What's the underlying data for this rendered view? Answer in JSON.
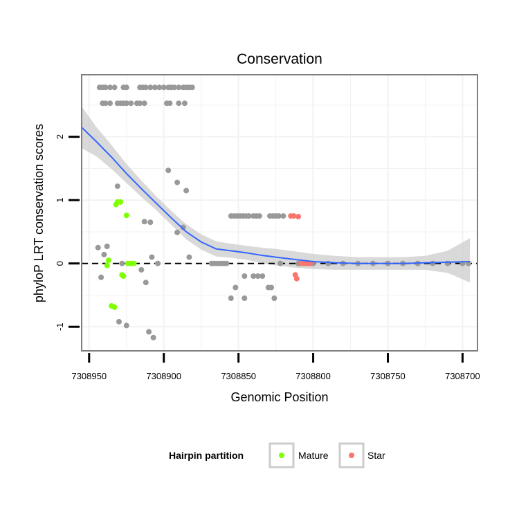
{
  "chart_data": {
    "type": "scatter",
    "title": "Conservation",
    "xlabel": "Genomic Position",
    "ylabel": "phyloP LRT conservation scores",
    "x_reversed": true,
    "xlim": [
      7308955,
      7308690
    ],
    "ylim": [
      -1.38,
      2.98
    ],
    "x_ticks": [
      7308950,
      7308900,
      7308850,
      7308800,
      7308750,
      7308700
    ],
    "x_tick_labels": [
      "7308950",
      "7308900",
      "7308850",
      "7308800",
      "7308750",
      "7308700"
    ],
    "y_ticks": [
      -1,
      0,
      1,
      2
    ],
    "y_tick_labels": [
      "-1",
      "0",
      "1",
      "2"
    ],
    "reference_line_y": 0,
    "legend": {
      "title": "Hairpin partition",
      "position": "bottom",
      "entries": [
        {
          "label": "Mature",
          "color": "#7FFF00"
        },
        {
          "label": "Star",
          "color": "#F8766D"
        }
      ]
    },
    "colors": {
      "other": "#999999",
      "Mature": "#7FFF00",
      "Star": "#F8766D",
      "smooth": "#3366FF",
      "ribbon": "#CCCCCC",
      "panel_border": "#7F7F7F",
      "grid": "#F2F2F2"
    },
    "series": [
      {
        "name": "Other",
        "points": [
          [
            7308943,
            2.78
          ],
          [
            7308941,
            2.78
          ],
          [
            7308939,
            2.78
          ],
          [
            7308936,
            2.78
          ],
          [
            7308933,
            2.78
          ],
          [
            7308927,
            2.78
          ],
          [
            7308925,
            2.78
          ],
          [
            7308916,
            2.78
          ],
          [
            7308914,
            2.78
          ],
          [
            7308912,
            2.78
          ],
          [
            7308909,
            2.78
          ],
          [
            7308906,
            2.78
          ],
          [
            7308903,
            2.78
          ],
          [
            7308900,
            2.78
          ],
          [
            7308897,
            2.78
          ],
          [
            7308895,
            2.78
          ],
          [
            7308893,
            2.78
          ],
          [
            7308890,
            2.78
          ],
          [
            7308887,
            2.78
          ],
          [
            7308885,
            2.78
          ],
          [
            7308883,
            2.78
          ],
          [
            7308881,
            2.78
          ],
          [
            7308941,
            2.53
          ],
          [
            7308939,
            2.53
          ],
          [
            7308936,
            2.53
          ],
          [
            7308931,
            2.53
          ],
          [
            7308929,
            2.53
          ],
          [
            7308927,
            2.53
          ],
          [
            7308925,
            2.53
          ],
          [
            7308922,
            2.53
          ],
          [
            7308918,
            2.53
          ],
          [
            7308916,
            2.53
          ],
          [
            7308913,
            2.53
          ],
          [
            7308898,
            2.53
          ],
          [
            7308896,
            2.53
          ],
          [
            7308890,
            2.53
          ],
          [
            7308886,
            2.53
          ],
          [
            7308897,
            1.47
          ],
          [
            7308931,
            1.22
          ],
          [
            7308885,
            1.15
          ],
          [
            7308891,
            1.28
          ],
          [
            7308913,
            0.66
          ],
          [
            7308909,
            0.65
          ],
          [
            7308887,
            0.57
          ],
          [
            7308891,
            0.49
          ],
          [
            7308944,
            0.25
          ],
          [
            7308938,
            0.27
          ],
          [
            7308940,
            0.14
          ],
          [
            7308908,
            0.1
          ],
          [
            7308883,
            0.1
          ],
          [
            7308928,
            0.0
          ],
          [
            7308915,
            -0.1
          ],
          [
            7308904,
            0.0
          ],
          [
            7308942,
            -0.22
          ],
          [
            7308912,
            -0.3
          ],
          [
            7308930,
            -0.92
          ],
          [
            7308925,
            -0.98
          ],
          [
            7308910,
            -1.08
          ],
          [
            7308907,
            -1.17
          ],
          [
            7308855,
            0.75
          ],
          [
            7308853,
            0.75
          ],
          [
            7308851,
            0.75
          ],
          [
            7308849,
            0.75
          ],
          [
            7308847,
            0.75
          ],
          [
            7308845,
            0.75
          ],
          [
            7308843,
            0.75
          ],
          [
            7308840,
            0.75
          ],
          [
            7308838,
            0.75
          ],
          [
            7308836,
            0.75
          ],
          [
            7308829,
            0.75
          ],
          [
            7308827,
            0.75
          ],
          [
            7308825,
            0.75
          ],
          [
            7308823,
            0.75
          ],
          [
            7308820,
            0.75
          ],
          [
            7308868,
            0.0
          ],
          [
            7308866,
            0.0
          ],
          [
            7308864,
            0.0
          ],
          [
            7308862,
            0.0
          ],
          [
            7308860,
            0.0
          ],
          [
            7308858,
            0.0
          ],
          [
            7308822,
            0.0
          ],
          [
            7308810,
            0.0
          ],
          [
            7308800,
            0.0
          ],
          [
            7308790,
            0.0
          ],
          [
            7308780,
            0.0
          ],
          [
            7308770,
            0.0
          ],
          [
            7308760,
            0.0
          ],
          [
            7308750,
            0.0
          ],
          [
            7308740,
            0.0
          ],
          [
            7308730,
            0.0
          ],
          [
            7308720,
            0.0
          ],
          [
            7308710,
            0.0
          ],
          [
            7308700,
            0.0
          ],
          [
            7308696,
            0.0
          ],
          [
            7308852,
            -0.38
          ],
          [
            7308846,
            -0.2
          ],
          [
            7308840,
            -0.2
          ],
          [
            7308837,
            -0.2
          ],
          [
            7308834,
            -0.2
          ],
          [
            7308830,
            -0.38
          ],
          [
            7308828,
            -0.38
          ],
          [
            7308855,
            -0.55
          ],
          [
            7308846,
            -0.55
          ],
          [
            7308826,
            -0.55
          ]
        ]
      },
      {
        "name": "Mature",
        "points": [
          [
            7308931,
            0.97
          ],
          [
            7308929,
            0.97
          ],
          [
            7308932,
            0.93
          ],
          [
            7308925,
            0.76
          ],
          [
            7308937,
            0.05
          ],
          [
            7308938,
            -0.03
          ],
          [
            7308928,
            -0.18
          ],
          [
            7308927,
            -0.2
          ],
          [
            7308935,
            -0.67
          ],
          [
            7308933,
            -0.69
          ],
          [
            7308924,
            0.0
          ],
          [
            7308922,
            0.0
          ],
          [
            7308920,
            0.0
          ]
        ]
      },
      {
        "name": "Star",
        "points": [
          [
            7308815,
            0.75
          ],
          [
            7308813,
            0.75
          ],
          [
            7308810,
            0.74
          ],
          [
            7308808,
            0.0
          ],
          [
            7308806,
            0.0
          ],
          [
            7308804,
            0.0
          ],
          [
            7308802,
            0.0
          ],
          [
            7308812,
            -0.18
          ],
          [
            7308811,
            -0.24
          ]
        ]
      }
    ],
    "smooth": [
      [
        7308955,
        2.15
      ],
      [
        7308945,
        1.92
      ],
      [
        7308935,
        1.68
      ],
      [
        7308925,
        1.42
      ],
      [
        7308915,
        1.18
      ],
      [
        7308905,
        0.95
      ],
      [
        7308895,
        0.72
      ],
      [
        7308885,
        0.5
      ],
      [
        7308875,
        0.34
      ],
      [
        7308865,
        0.23
      ],
      [
        7308855,
        0.2
      ],
      [
        7308845,
        0.17
      ],
      [
        7308835,
        0.13
      ],
      [
        7308825,
        0.1
      ],
      [
        7308815,
        0.07
      ],
      [
        7308800,
        0.03
      ],
      [
        7308785,
        0.01
      ],
      [
        7308770,
        0.0
      ],
      [
        7308755,
        0.0
      ],
      [
        7308740,
        0.0
      ],
      [
        7308725,
        0.01
      ],
      [
        7308710,
        0.02
      ],
      [
        7308695,
        0.03
      ]
    ],
    "ribbon": {
      "upper": [
        [
          7308955,
          2.48
        ],
        [
          7308945,
          2.15
        ],
        [
          7308935,
          1.87
        ],
        [
          7308925,
          1.57
        ],
        [
          7308915,
          1.31
        ],
        [
          7308905,
          1.06
        ],
        [
          7308895,
          0.83
        ],
        [
          7308885,
          0.62
        ],
        [
          7308875,
          0.46
        ],
        [
          7308865,
          0.35
        ],
        [
          7308855,
          0.31
        ],
        [
          7308845,
          0.28
        ],
        [
          7308835,
          0.25
        ],
        [
          7308825,
          0.23
        ],
        [
          7308815,
          0.2
        ],
        [
          7308800,
          0.15
        ],
        [
          7308785,
          0.12
        ],
        [
          7308770,
          0.1
        ],
        [
          7308755,
          0.1
        ],
        [
          7308740,
          0.1
        ],
        [
          7308725,
          0.12
        ],
        [
          7308710,
          0.2
        ],
        [
          7308695,
          0.4
        ]
      ],
      "lower": [
        [
          7308955,
          1.82
        ],
        [
          7308945,
          1.69
        ],
        [
          7308935,
          1.49
        ],
        [
          7308925,
          1.27
        ],
        [
          7308915,
          1.05
        ],
        [
          7308905,
          0.84
        ],
        [
          7308895,
          0.61
        ],
        [
          7308885,
          0.38
        ],
        [
          7308875,
          0.22
        ],
        [
          7308865,
          0.11
        ],
        [
          7308855,
          0.09
        ],
        [
          7308845,
          0.06
        ],
        [
          7308835,
          0.01
        ],
        [
          7308825,
          -0.03
        ],
        [
          7308815,
          -0.06
        ],
        [
          7308800,
          -0.09
        ],
        [
          7308785,
          -0.1
        ],
        [
          7308770,
          -0.1
        ],
        [
          7308755,
          -0.1
        ],
        [
          7308740,
          -0.1
        ],
        [
          7308725,
          -0.1
        ],
        [
          7308710,
          -0.15
        ],
        [
          7308695,
          -0.3
        ]
      ]
    }
  }
}
